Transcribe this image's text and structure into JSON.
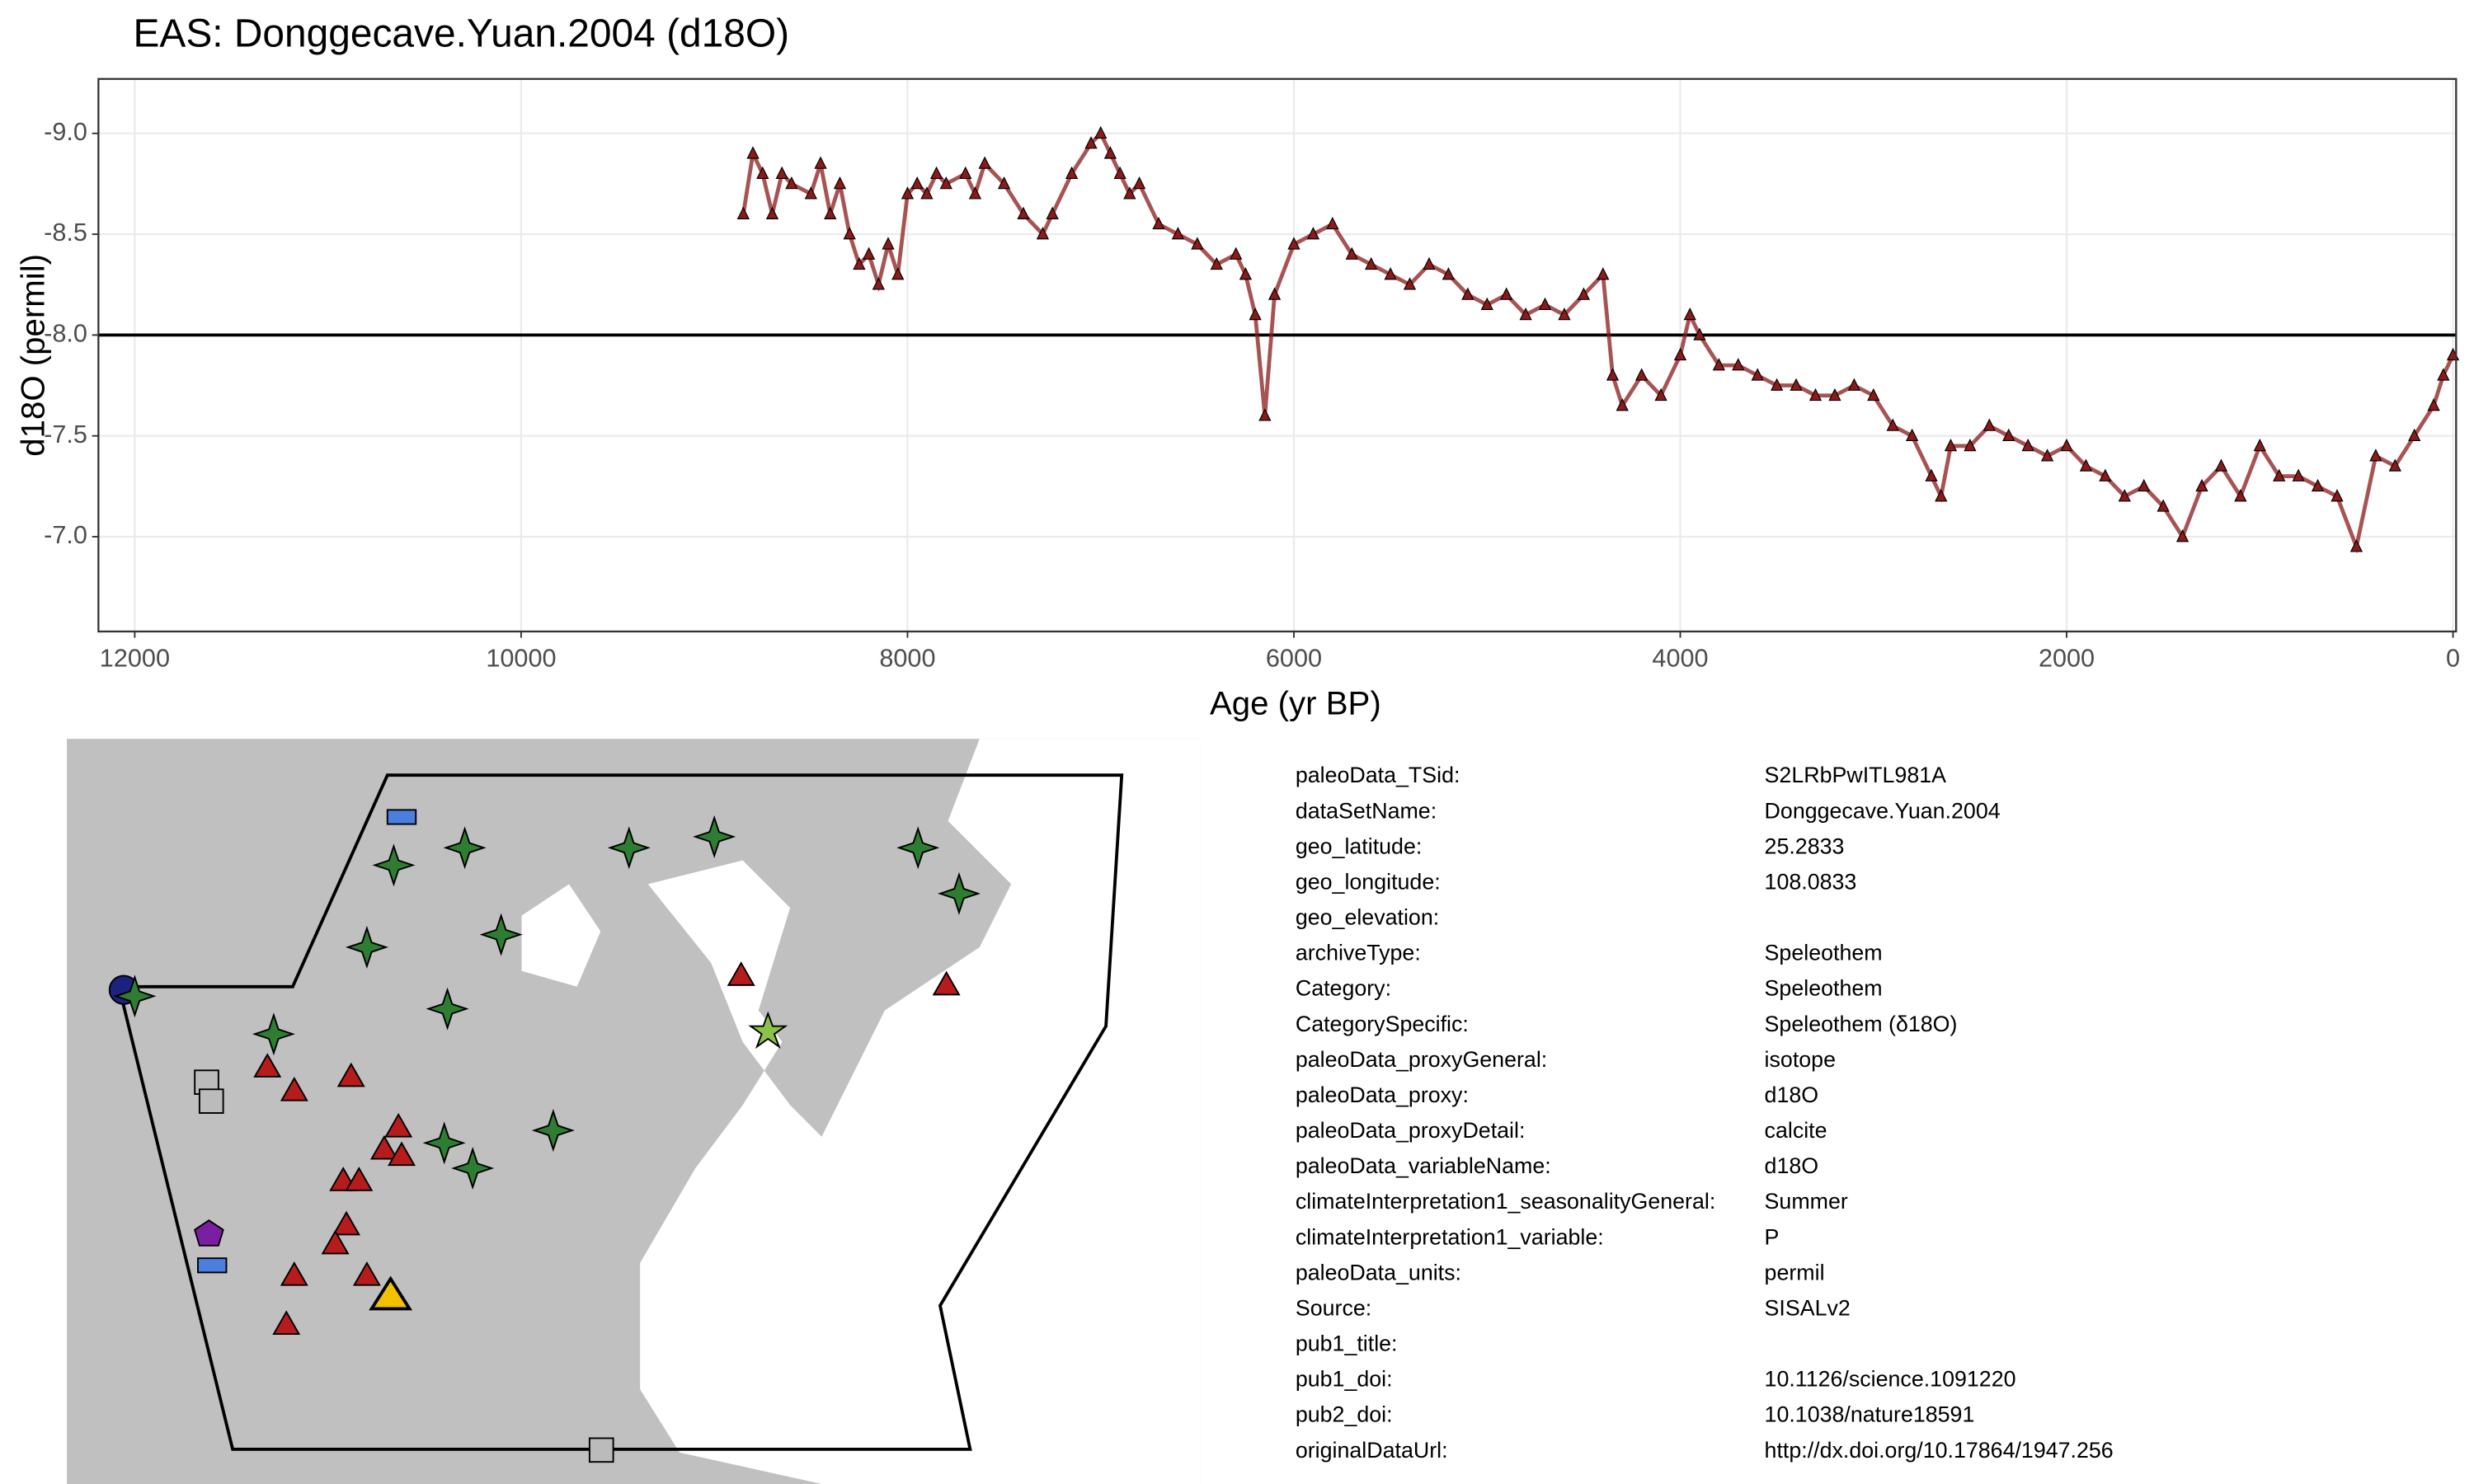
{
  "chart_data": {
    "type": "line",
    "title": "EAS: Donggecave.Yuan.2004 (d18O)",
    "x_label": "Age (yr BP)",
    "y_label": "d18O (permil)",
    "x": [
      8850,
      8800,
      8750,
      8700,
      8650,
      8600,
      8500,
      8450,
      8400,
      8350,
      8300,
      8250,
      8200,
      8150,
      8100,
      8050,
      8000,
      7950,
      7900,
      7850,
      7800,
      7700,
      7650,
      7600,
      7500,
      7400,
      7300,
      7250,
      7150,
      7050,
      7000,
      6950,
      6900,
      6850,
      6800,
      6700,
      6600,
      6500,
      6400,
      6300,
      6250,
      6200,
      6150,
      6100,
      6000,
      5900,
      5800,
      5700,
      5600,
      5500,
      5400,
      5300,
      5200,
      5100,
      5000,
      4900,
      4800,
      4700,
      4600,
      4500,
      4400,
      4350,
      4300,
      4200,
      4100,
      4000,
      3950,
      3900,
      3800,
      3700,
      3600,
      3500,
      3400,
      3300,
      3200,
      3100,
      3000,
      2900,
      2800,
      2700,
      2650,
      2600,
      2500,
      2400,
      2300,
      2200,
      2100,
      2000,
      1900,
      1800,
      1700,
      1600,
      1500,
      1400,
      1300,
      1200,
      1100,
      1000,
      900,
      800,
      700,
      600,
      500,
      400,
      300,
      200,
      100,
      50,
      0
    ],
    "series": [
      {
        "name": "d18O",
        "color": "#8b1a1a",
        "values": [
          -8.6,
          -8.9,
          -8.8,
          -8.6,
          -8.8,
          -8.75,
          -8.7,
          -8.85,
          -8.6,
          -8.75,
          -8.5,
          -8.35,
          -8.4,
          -8.25,
          -8.45,
          -8.3,
          -8.7,
          -8.75,
          -8.7,
          -8.8,
          -8.75,
          -8.8,
          -8.7,
          -8.85,
          -8.75,
          -8.6,
          -8.5,
          -8.6,
          -8.8,
          -8.95,
          -9.0,
          -8.9,
          -8.8,
          -8.7,
          -8.75,
          -8.55,
          -8.5,
          -8.45,
          -8.35,
          -8.4,
          -8.3,
          -8.1,
          -7.6,
          -8.2,
          -8.45,
          -8.5,
          -8.55,
          -8.4,
          -8.35,
          -8.3,
          -8.25,
          -8.35,
          -8.3,
          -8.2,
          -8.15,
          -8.2,
          -8.1,
          -8.15,
          -8.1,
          -8.2,
          -8.3,
          -7.8,
          -7.65,
          -7.8,
          -7.7,
          -7.9,
          -8.1,
          -8.0,
          -7.85,
          -7.85,
          -7.8,
          -7.75,
          -7.75,
          -7.7,
          -7.7,
          -7.75,
          -7.7,
          -7.55,
          -7.5,
          -7.3,
          -7.2,
          -7.45,
          -7.45,
          -7.55,
          -7.5,
          -7.45,
          -7.4,
          -7.45,
          -7.35,
          -7.3,
          -7.2,
          -7.25,
          -7.15,
          -7.0,
          -7.25,
          -7.35,
          -7.2,
          -7.45,
          -7.3,
          -7.3,
          -7.25,
          -7.2,
          -6.95,
          -7.4,
          -7.35,
          -7.5,
          -7.65,
          -7.8,
          -7.9
        ]
      }
    ],
    "xlim": [
      12188,
      -16
    ],
    "xticks": [
      12000,
      10000,
      8000,
      6000,
      4000,
      2000,
      0
    ],
    "ylim": [
      -6.53,
      -9.27
    ],
    "yticks": [
      {
        "value": -9.0,
        "label": "-9.0"
      },
      {
        "value": -8.5,
        "label": "-8.5"
      },
      {
        "value": -8.0,
        "label": "-8.0"
      },
      {
        "value": -7.5,
        "label": "-7.5"
      },
      {
        "value": -7.0,
        "label": "-7.0"
      }
    ],
    "hline": -8.0,
    "grid": true
  },
  "metadata": [
    [
      "paleoData_TSid:",
      "S2LRbPwITL981A"
    ],
    [
      "dataSetName:",
      "Donggecave.Yuan.2004"
    ],
    [
      "geo_latitude:",
      25.2833
    ],
    [
      "geo_longitude:",
      108.0833
    ],
    [
      "geo_elevation:"
    ],
    [
      "archiveType:",
      "Speleothem"
    ],
    [
      "Category:",
      "Speleothem"
    ],
    [
      "CategorySpecific:",
      "Speleothem (δ18O)"
    ],
    [
      "paleoData_proxyGeneral:",
      "isotope"
    ],
    [
      "paleoData_proxy:",
      "d18O"
    ],
    [
      "paleoData_proxyDetail:",
      "calcite"
    ],
    [
      "paleoData_variableName:",
      "d18O"
    ],
    [
      "climateInterpretation1_seasonalityGeneral:",
      "Summer"
    ],
    [
      "climateInterpretation1_variable:",
      "P"
    ],
    [
      "paleoData_units:",
      "permil"
    ],
    [
      "Source:",
      "SISALv2"
    ],
    [
      "pub1_title:"
    ],
    [
      "pub1_doi:",
      "10.1126/science.1091220"
    ],
    [
      "pub2_doi:",
      "10.1038/nature18591"
    ],
    [
      "originalDataUrl:",
      "http://dx.doi.org/10.17864/1947.256"
    ]
  ]
}
